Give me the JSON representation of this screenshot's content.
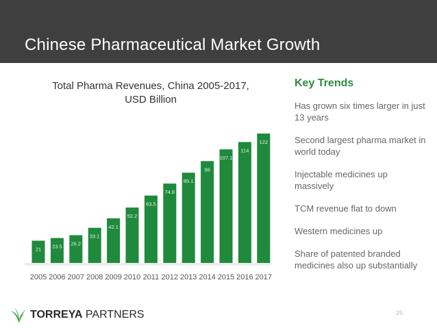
{
  "header": {
    "title": "Chinese Pharmaceutical Market Growth"
  },
  "chart_data": {
    "type": "bar",
    "title": "Total Pharma Revenues, China 2005-2017, USD Billion",
    "xlabel": "",
    "ylabel": "",
    "categories": [
      "2005",
      "2006",
      "2007",
      "2008",
      "2009",
      "2010",
      "2011",
      "2012",
      "2013",
      "2014",
      "2015",
      "2016",
      "2017"
    ],
    "values": [
      21,
      23.5,
      26.2,
      33.1,
      42.1,
      52.2,
      63.5,
      74.8,
      85.1,
      96,
      107.1,
      114,
      122
    ],
    "value_labels": [
      "21",
      "23.5",
      "26.2",
      "33.1",
      "42.1",
      "52.2",
      "63.5",
      "74.8",
      "85.1",
      "96",
      "107.1",
      "114",
      "122"
    ],
    "ylim": [
      0,
      122
    ],
    "grid": false,
    "legend": "none",
    "bar_color": "#1f8a3c"
  },
  "panel": {
    "title": "Key Trends",
    "items": [
      "Has grown six times larger in just 13 years",
      "Second largest pharma market in world today",
      "Injectable medicines up massively",
      "TCM revenue flat to down",
      "Western medicines up",
      "Share of patented branded medicines also up substantially"
    ]
  },
  "footer": {
    "page_number": "25",
    "logo_text_1": "TORREYA",
    "logo_text_2": "PARTNERS",
    "logo_icon": "leaf-icon"
  },
  "colors": {
    "header_bg": "#3f3f3f",
    "accent_green": "#2e8b3e"
  }
}
